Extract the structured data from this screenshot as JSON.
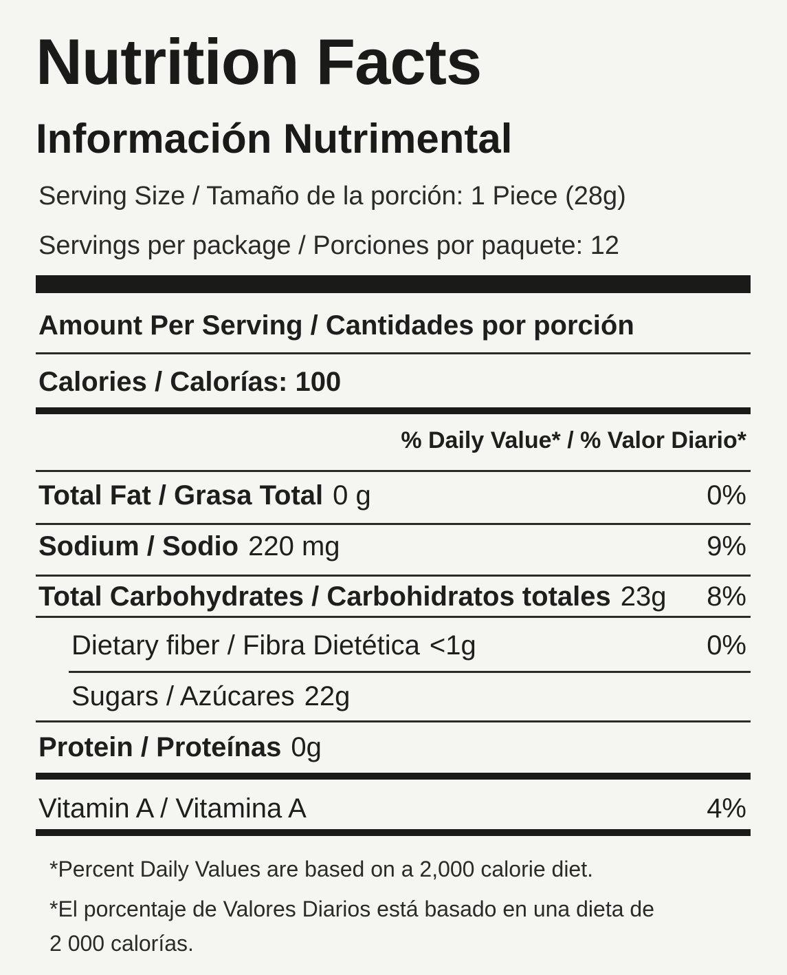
{
  "title": "Nutrition Facts",
  "subtitle": "Información Nutrimental",
  "serving_size": "Serving Size / Tamaño de la porción: 1 Piece  (28g)",
  "servings_per_package": "Servings per package / Porciones por paquete: 12",
  "amount_per_serving": "Amount Per Serving / Cantidades por porción",
  "calories": "Calories / Calorías: 100",
  "daily_value_header": "% Daily Value* / % Valor Diario*",
  "nutrients": [
    {
      "label": "Total Fat / Grasa Total",
      "amount": "0 g",
      "percent": "0%"
    },
    {
      "label": "Sodium / Sodio",
      "amount": "220 mg",
      "percent": "9%"
    },
    {
      "label": "Total Carbohydrates / Carbohidratos totales",
      "amount": "23g",
      "percent": "8%"
    },
    {
      "label": "Dietary fiber / Fibra Dietética",
      "amount": "<1g",
      "percent": "0%"
    },
    {
      "label": "Sugars / Azúcares",
      "amount": "22g",
      "percent": ""
    },
    {
      "label": "Protein / Proteínas",
      "amount": "0g",
      "percent": ""
    },
    {
      "label": "Vitamin A / Vitamina A",
      "amount": "",
      "percent": "4%"
    }
  ],
  "footnotes": [
    "*Percent Daily Values are based on a 2,000 calorie diet.",
    "*El porcentaje de Valores Diarios está basado en una dieta de",
    "2 000 calorías."
  ]
}
